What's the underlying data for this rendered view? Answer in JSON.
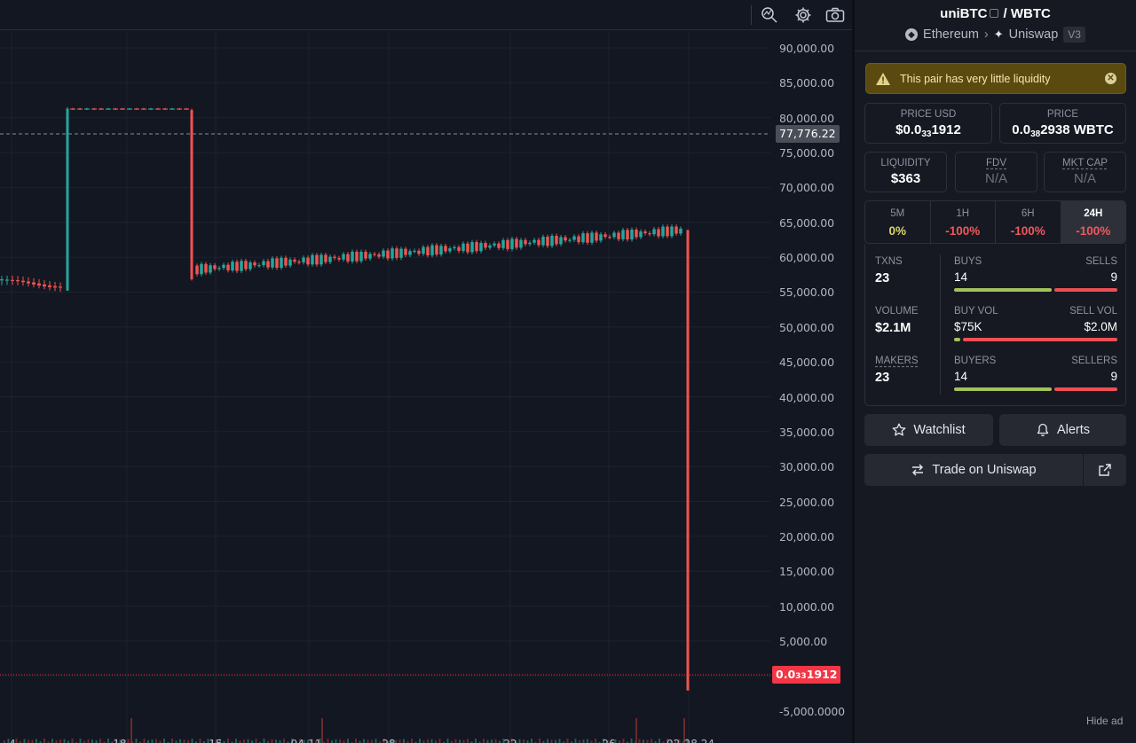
{
  "chart": {
    "price_ticks": [
      "90,000.00",
      "85,000.00",
      "80,000.00",
      "75,000.00",
      "70,000.00",
      "65,000.00",
      "60,000.00",
      "55,000.00",
      "50,000.00",
      "45,000.00",
      "40,000.00",
      "35,000.00",
      "30,000.00",
      "25,000.00",
      "20,000.00",
      "15,000.00",
      "10,000.00",
      "5,000.00",
      "-5,000.0000"
    ],
    "last_price_label": "77,776.22",
    "current_price_label": {
      "lead": "0.0",
      "sub": "33",
      "tail": "1912"
    },
    "x_ticks": [
      "4",
      "18",
      "15",
      "04-11",
      "28",
      "22",
      "26",
      "02-28 24"
    ],
    "up_color": "#26a69a",
    "down_color": "#ef5350",
    "toolbar_icons": [
      "search-indicator-icon",
      "gear-icon",
      "camera-icon"
    ]
  },
  "chart_data": {
    "type": "candlestick",
    "ylim": [
      -5000,
      90000
    ],
    "segments": [
      {
        "from": 0,
        "to": 75,
        "level": 57500
      },
      {
        "from": 76,
        "to": 215,
        "level": 81500
      },
      {
        "from": 220,
        "to": 770,
        "level": 60000
      }
    ]
  },
  "panel": {
    "base": "uniBTC",
    "slash": "/",
    "quote": "WBTC",
    "chain": "Ethereum",
    "dex": "Uniswap",
    "version": "V3",
    "warning": "This pair has very little liquidity",
    "price_usd": {
      "label": "PRICE USD",
      "lead": "$0.0",
      "sub": "33",
      "tail": "1912"
    },
    "price_native": {
      "label": "PRICE",
      "lead": "0.0",
      "sub": "38",
      "tail": "2938 WBTC"
    },
    "liquidity": {
      "label": "LIQUIDITY",
      "value": "$363"
    },
    "fdv": {
      "label": "FDV",
      "value": "N/A"
    },
    "mkt_cap": {
      "label": "MKT CAP",
      "value": "N/A"
    },
    "timeframes": [
      {
        "label": "5M",
        "value": "0%",
        "color": "#d9d36b"
      },
      {
        "label": "1H",
        "value": "-100%",
        "color": "#f0575d"
      },
      {
        "label": "6H",
        "value": "-100%",
        "color": "#f0575d"
      },
      {
        "label": "24H",
        "value": "-100%",
        "color": "#f0575d"
      }
    ],
    "txns": {
      "label": "TXNS",
      "value": "23"
    },
    "volume": {
      "label": "VOLUME",
      "value": "$2.1M"
    },
    "makers": {
      "label": "MAKERS",
      "value": "23"
    },
    "buys": {
      "label": "BUYS",
      "value": "14",
      "sells_label": "SELLS",
      "sells_value": "9",
      "ratio": 0.61
    },
    "buy_vol": {
      "label": "BUY VOL",
      "value": "$75K",
      "sells_label": "SELL VOL",
      "sells_value": "$2.0M",
      "ratio": 0.036
    },
    "buyers": {
      "label": "BUYERS",
      "value": "14",
      "sells_label": "SELLERS",
      "sells_value": "9",
      "ratio": 0.61
    },
    "watchlist_label": "Watchlist",
    "alerts_label": "Alerts",
    "trade_label": "Trade on Uniswap",
    "hide_ad": "Hide ad"
  }
}
